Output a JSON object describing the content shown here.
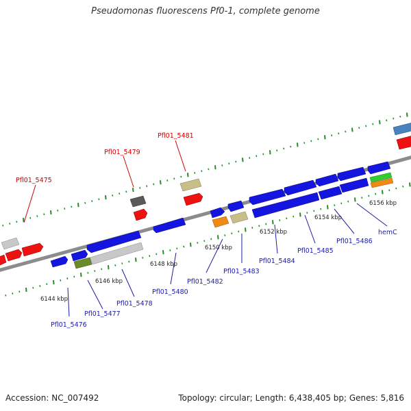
{
  "title": "Pseudomonas fluorescens Pf0-1, complete genome",
  "footer": {
    "accession": "Accession: NC_007492",
    "info": "Topology: circular; Length: 6,438,405 bp; Genes: 5,816"
  },
  "colors": {
    "backbone": "#8c8c8c",
    "gc_skew_ticks": "#2a8a2a",
    "label_forward": "#cc0000",
    "label_reverse": "#1a1aa8",
    "blue_gene": "#1515e0",
    "red_gene": "#ee1111",
    "light_gray_gene": "#c8c8c8",
    "dark_gray_gene": "#5a5a5a",
    "khaki_gene": "#c8bf88",
    "orange_gene": "#f08a16",
    "olive_gene": "#6b8a2a",
    "green_gene": "#33cc33",
    "steel_blue_gene": "#4a82c0"
  },
  "scale_labels": [
    "6144 kbp",
    "6146 kbp",
    "6148 kbp",
    "6150 kbp",
    "6152 kbp",
    "6154 kbp",
    "6156 kbp"
  ],
  "forward_labels": [
    "Pfl01_5475",
    "Pfl01_5479",
    "Pfl01_5481"
  ],
  "reverse_labels": [
    "Pfl01_5476",
    "Pfl01_5477",
    "Pfl01_5478",
    "Pfl01_5480",
    "Pfl01_5482",
    "Pfl01_5483",
    "Pfl01_5484",
    "Pfl01_5485",
    "Pfl01_5486",
    "hemC"
  ]
}
